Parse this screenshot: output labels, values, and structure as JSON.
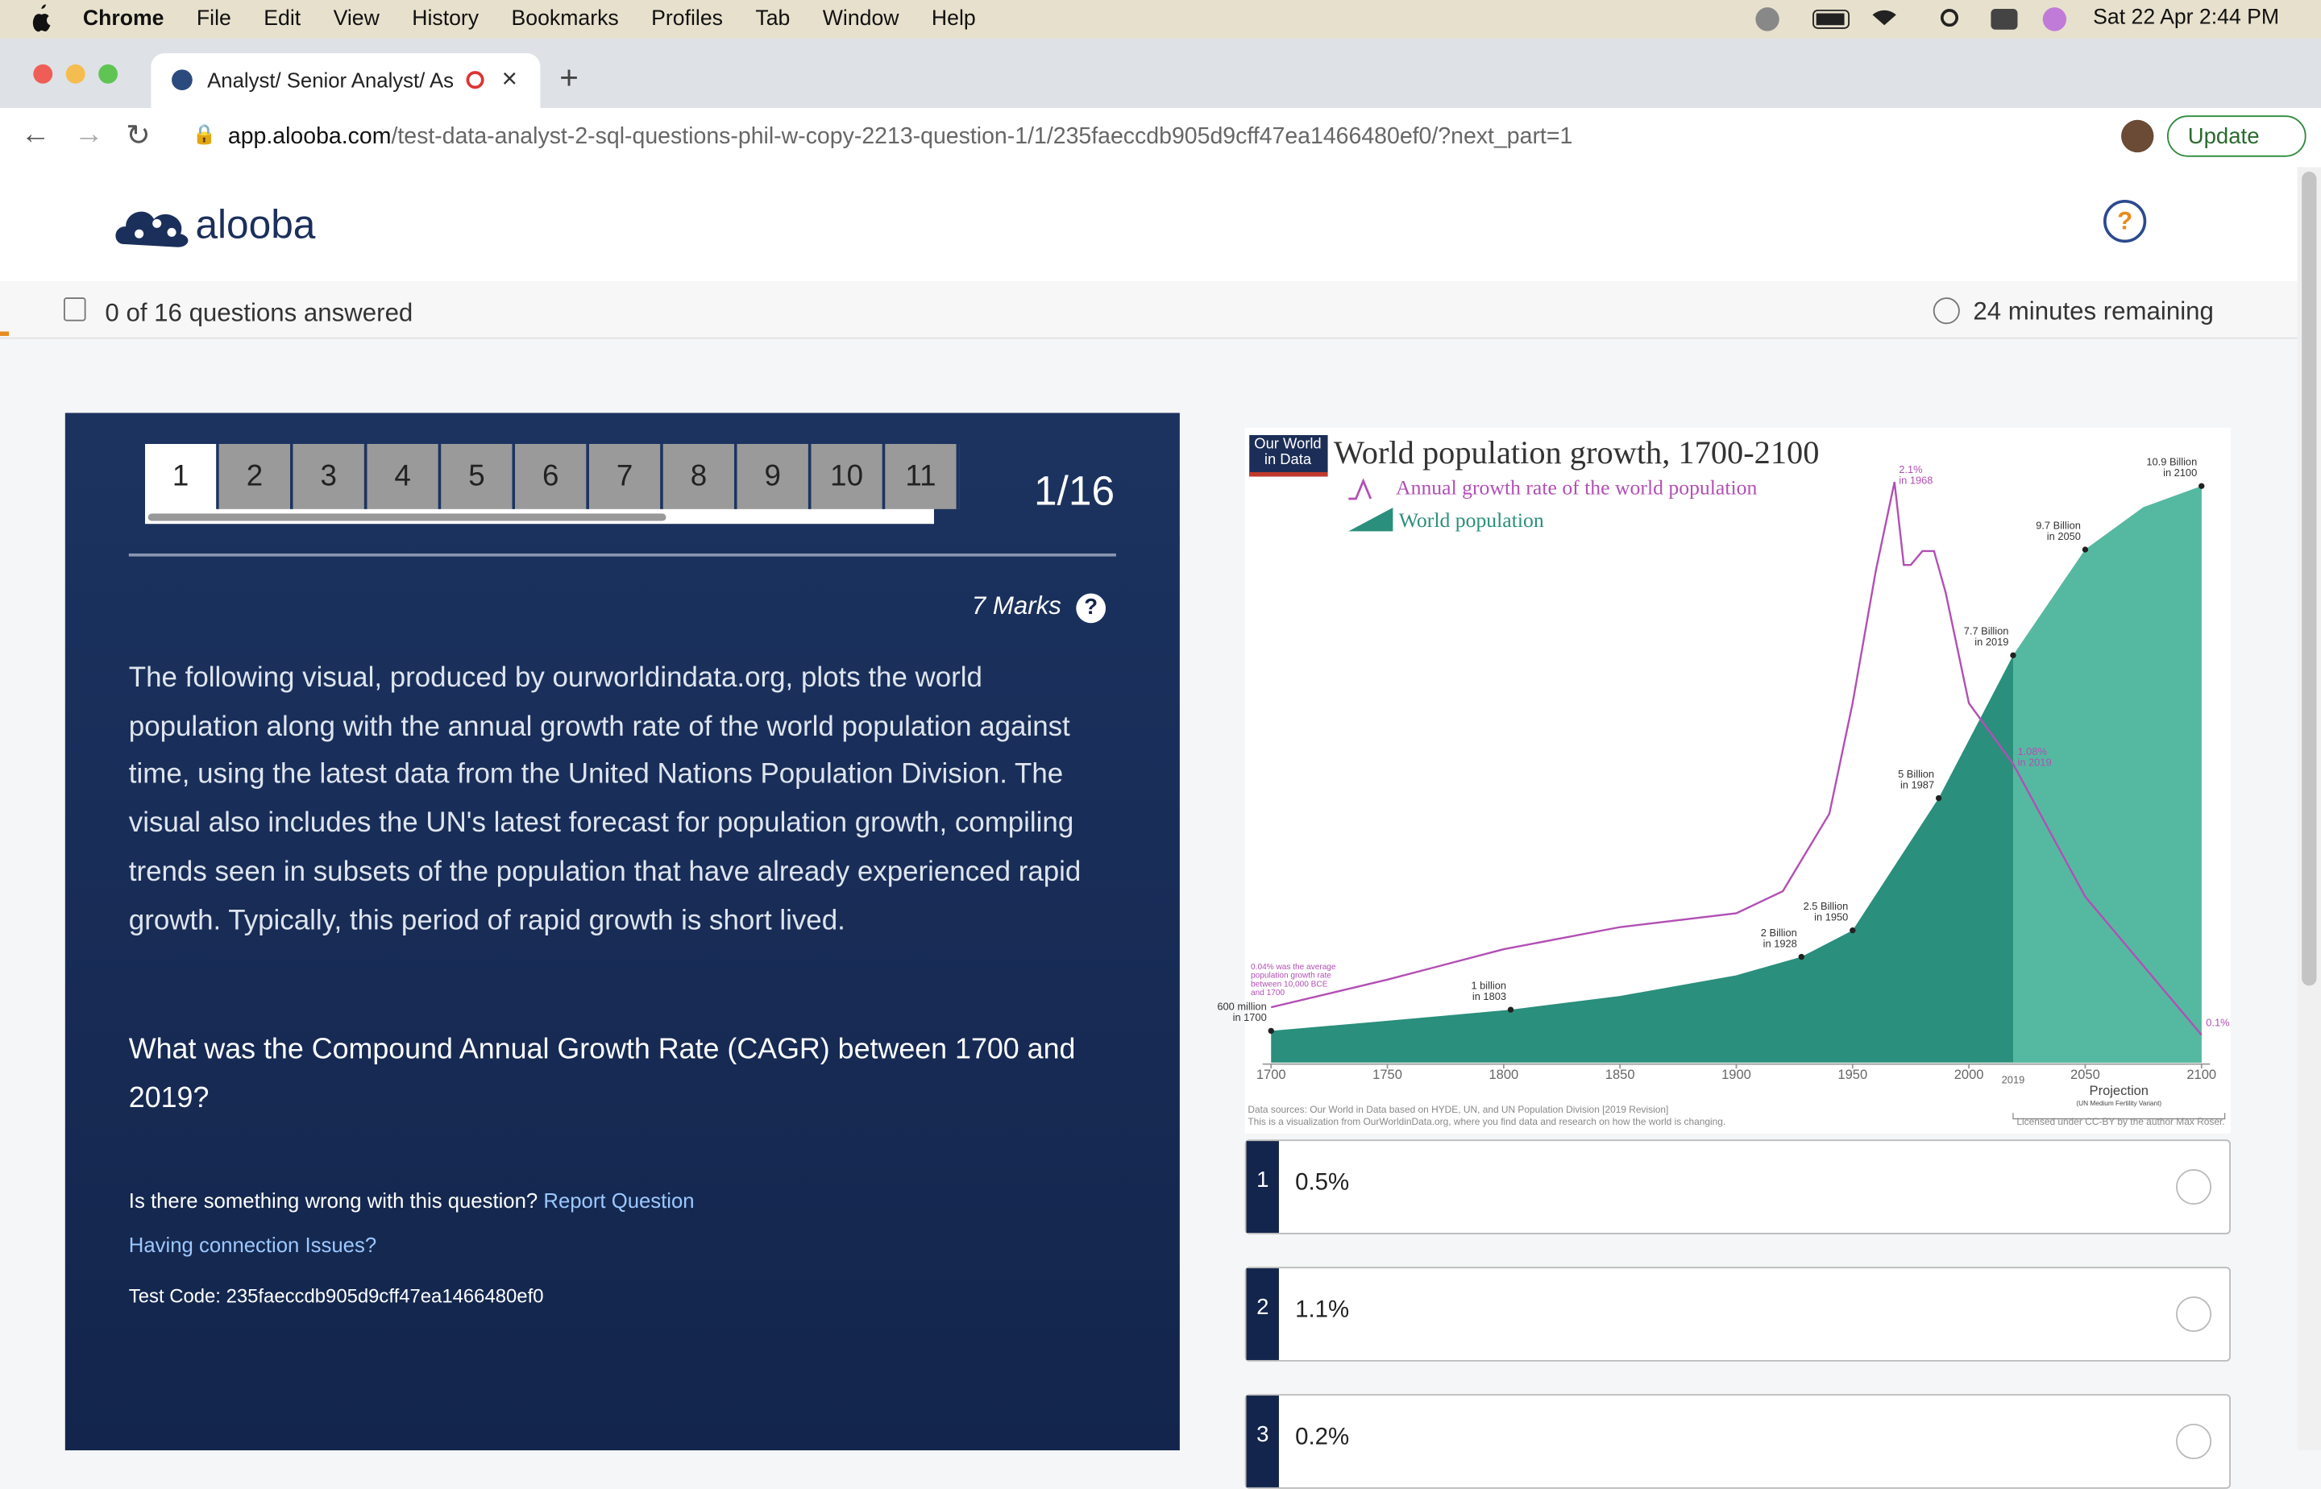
{
  "menu_bar": {
    "app": "Chrome",
    "items": [
      "File",
      "Edit",
      "View",
      "History",
      "Bookmarks",
      "Profiles",
      "Tab",
      "Window",
      "Help"
    ],
    "clock": "Sat 22 Apr  2:44 PM"
  },
  "browser": {
    "tab_title": "Analyst/ Senior Analyst/ As",
    "url_host": "app.alooba.com",
    "url_path": "/test-data-analyst-2-sql-questions-phil-w-copy-2213-question-1/1/235faeccdb905d9cff47ea1466480ef0/?next_part=1",
    "update_button": "Update"
  },
  "header": {
    "logo": "alooba",
    "help": "?"
  },
  "progress": {
    "answered": "0 of 16 questions answered",
    "remaining": "24 minutes remaining"
  },
  "question": {
    "tabs": [
      "1",
      "2",
      "3",
      "4",
      "5",
      "6",
      "7",
      "8",
      "9",
      "10",
      "11"
    ],
    "position": "1/16",
    "marks": "7 Marks",
    "marks_help": "?",
    "body": "The following visual, produced by ourworldindata.org, plots the world population along with the annual growth rate of the world population against time, using the latest data from the United Nations Population Division. The visual also includes the UN's latest forecast for population growth, compiling trends seen in subsets of the population that have already experienced rapid growth. Typically, this period of rapid growth is short lived.",
    "prompt": "What was the Compound Annual Growth Rate (CAGR) between 1700 and 2019?",
    "report_prefix": "Is there something wrong with this question?",
    "report_link": "Report Question",
    "connection_link": "Having connection Issues?",
    "test_code": "Test Code: 235faeccdb905d9cff47ea1466480ef0"
  },
  "options": [
    {
      "number": "1",
      "text": "0.5%"
    },
    {
      "number": "2",
      "text": "1.1%"
    },
    {
      "number": "3",
      "text": "0.2%"
    }
  ],
  "chart_data": {
    "type": "area",
    "title": "World population growth, 1700-2100",
    "logo": "Our World\nin Data",
    "series": [
      {
        "name": "Annual growth rate of the world population",
        "color": "#b24fb4",
        "axis": "y2",
        "x": [
          1700,
          1750,
          1800,
          1850,
          1900,
          1920,
          1940,
          1950,
          1960,
          1968,
          1972,
          1975,
          1980,
          1985,
          1990,
          2000,
          2019,
          2050,
          2100
        ],
        "values": [
          0.2,
          0.3,
          0.41,
          0.49,
          0.54,
          0.62,
          0.9,
          1.3,
          1.78,
          2.1,
          1.8,
          1.8,
          1.85,
          1.85,
          1.7,
          1.3,
          1.08,
          0.6,
          0.1
        ],
        "value_labels": [
          null,
          null,
          null,
          null,
          null,
          null,
          null,
          null,
          null,
          "2.1%\nin 1968",
          null,
          null,
          null,
          null,
          null,
          null,
          "1.08%\nin 2019",
          null,
          "0.1%"
        ]
      },
      {
        "name": "World population",
        "color": "#2a8f7c",
        "x": [
          1700,
          1750,
          1803,
          1850,
          1900,
          1928,
          1950,
          1987,
          2019,
          2050,
          2075,
          2100
        ],
        "values": [
          0.6,
          0.79,
          1,
          1.26,
          1.65,
          2,
          2.5,
          5,
          7.7,
          9.7,
          10.5,
          10.9
        ],
        "value_labels": [
          "600 million\nin 1700",
          null,
          "1 billion\nin 1803",
          null,
          null,
          "2 Billion\nin 1928",
          "2.5 Billion\nin 1950",
          "5 Billion\nin 1987",
          "7.7 Billion\nin 2019",
          "9.7 Billion\nin 2050",
          null,
          "10.9 Billion\nin 2100"
        ]
      }
    ],
    "projection_start": 2019,
    "projection_label": "Projection",
    "projection_note": "(UN Medium Fertility Variant)",
    "projection_color": "#55b9a1",
    "annotation": "0.04% was the average\npopulation growth rate\nbetween 10,000 BCE\nand 1700",
    "xlim": [
      1690,
      2110
    ],
    "xticks": [
      1700,
      1750,
      1800,
      1850,
      1900,
      1950,
      2000,
      2050,
      2100
    ],
    "ylim": [
      0,
      11.5
    ],
    "y2lim": [
      0,
      2.2
    ],
    "sources": [
      "Data sources: Our World in Data based on HYDE, UN, and UN Population Division [2019 Revision]",
      "This is a visualization from OurWorldinData.org, where you find data and research on how the world is changing."
    ],
    "license": "Licensed under CC-BY by the author Max Roser."
  }
}
